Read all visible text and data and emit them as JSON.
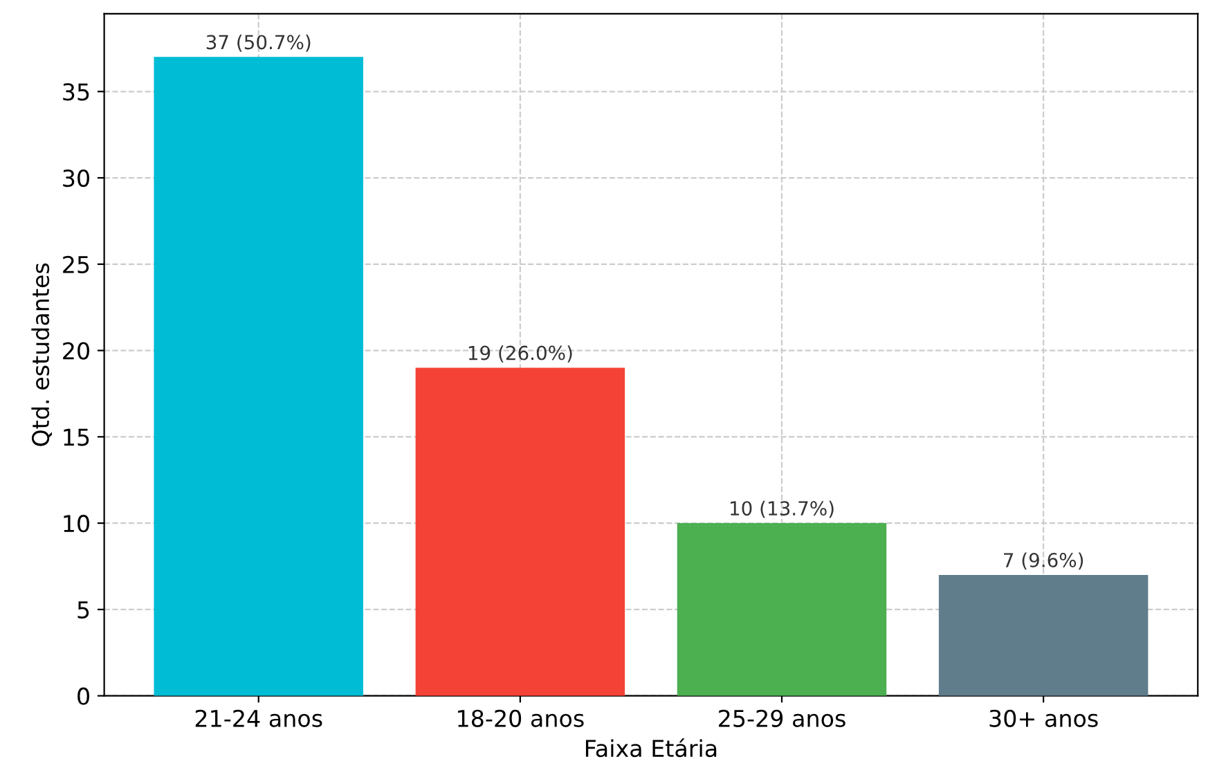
{
  "chart_data": {
    "type": "bar",
    "xlabel": "Faixa Etária",
    "ylabel": "Qtd. estudantes",
    "categories": [
      "21-24 anos",
      "18-20 anos",
      "25-29 anos",
      "30+ anos"
    ],
    "values": [
      37,
      19,
      10,
      7
    ],
    "colors": [
      "#00bcd4",
      "#f44336",
      "#4caf50",
      "#607d8b"
    ],
    "value_labels": [
      "37 (50.7%)",
      "19 (26.0%)",
      "10 (13.7%)",
      "7 (9.6%)"
    ],
    "ylim": [
      0,
      39.5
    ],
    "yticks": [
      0,
      5,
      10,
      15,
      20,
      25,
      30,
      35
    ],
    "grid": true
  }
}
